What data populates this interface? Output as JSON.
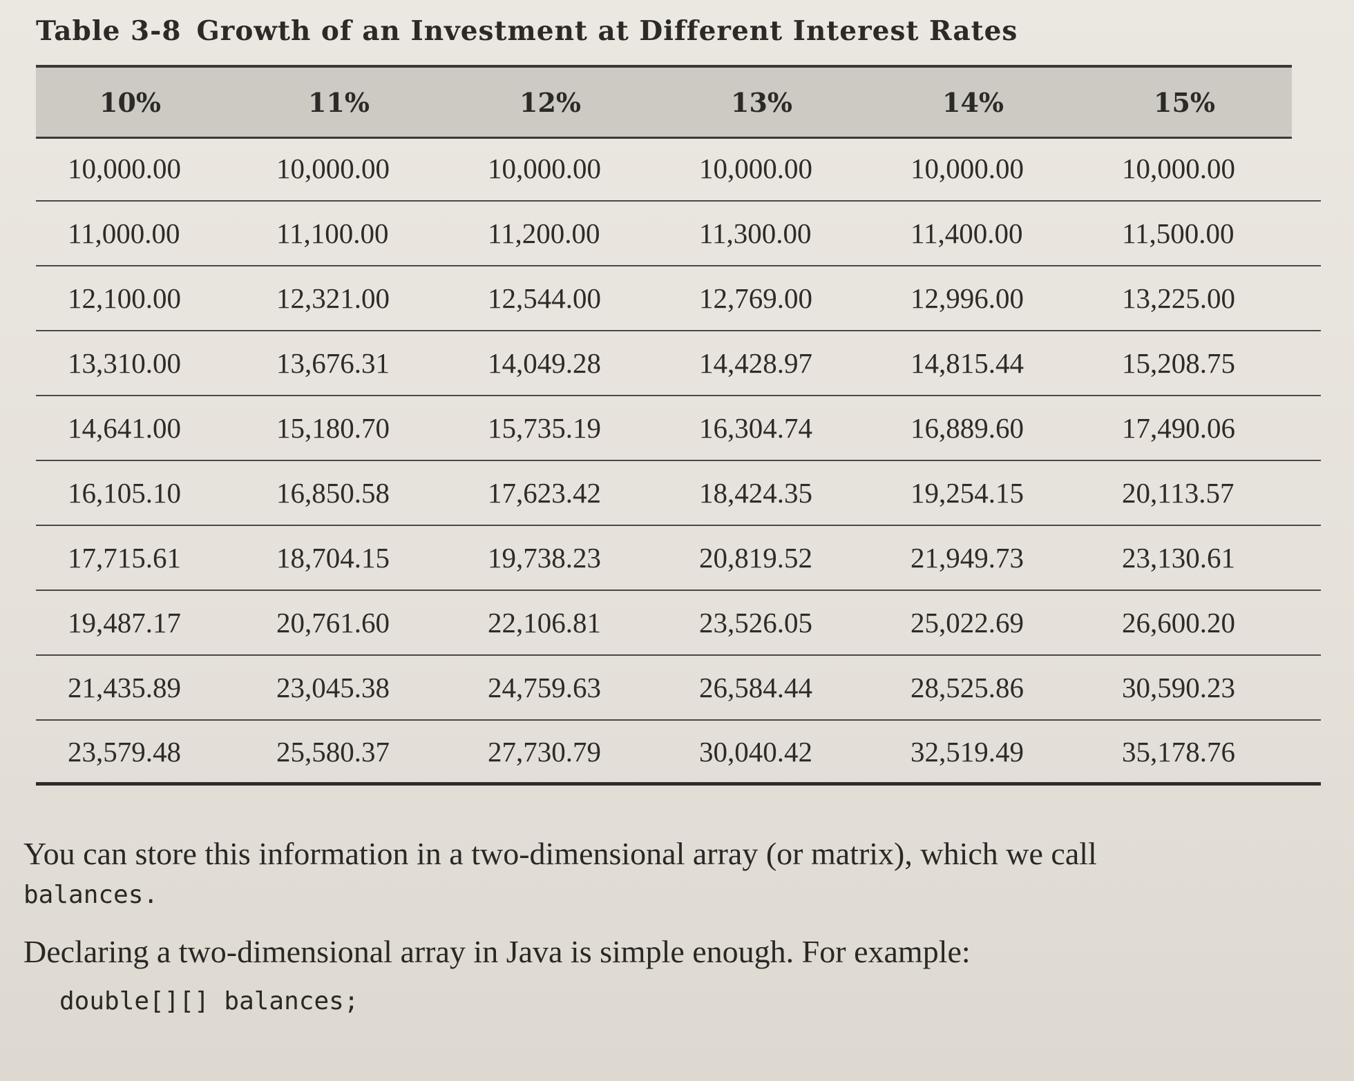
{
  "table": {
    "number": "Table 3-8",
    "title": "Growth of an Investment at Different Interest Rates",
    "headers": [
      "10%",
      "11%",
      "12%",
      "13%",
      "14%",
      "15%"
    ],
    "rows": [
      [
        "10,000.00",
        "10,000.00",
        "10,000.00",
        "10,000.00",
        "10,000.00",
        "10,000.00"
      ],
      [
        "11,000.00",
        "11,100.00",
        "11,200.00",
        "11,300.00",
        "11,400.00",
        "11,500.00"
      ],
      [
        "12,100.00",
        "12,321.00",
        "12,544.00",
        "12,769.00",
        "12,996.00",
        "13,225.00"
      ],
      [
        "13,310.00",
        "13,676.31",
        "14,049.28",
        "14,428.97",
        "14,815.44",
        "15,208.75"
      ],
      [
        "14,641.00",
        "15,180.70",
        "15,735.19",
        "16,304.74",
        "16,889.60",
        "17,490.06"
      ],
      [
        "16,105.10",
        "16,850.58",
        "17,623.42",
        "18,424.35",
        "19,254.15",
        "20,113.57"
      ],
      [
        "17,715.61",
        "18,704.15",
        "19,738.23",
        "20,819.52",
        "21,949.73",
        "23,130.61"
      ],
      [
        "19,487.17",
        "20,761.60",
        "22,106.81",
        "23,526.05",
        "25,022.69",
        "26,600.20"
      ],
      [
        "21,435.89",
        "23,045.38",
        "24,759.63",
        "26,584.44",
        "28,525.86",
        "30,590.23"
      ],
      [
        "23,579.48",
        "25,580.37",
        "27,730.79",
        "30,040.42",
        "32,519.49",
        "35,178.76"
      ]
    ]
  },
  "body": {
    "paragraph1": "You can store this information in a two-dimensional array (or matrix), which we call",
    "paragraph1_code": "balances.",
    "paragraph2": "Declaring a two-dimensional array in Java is simple enough. For example:",
    "code_line": "double[][] balances;"
  }
}
